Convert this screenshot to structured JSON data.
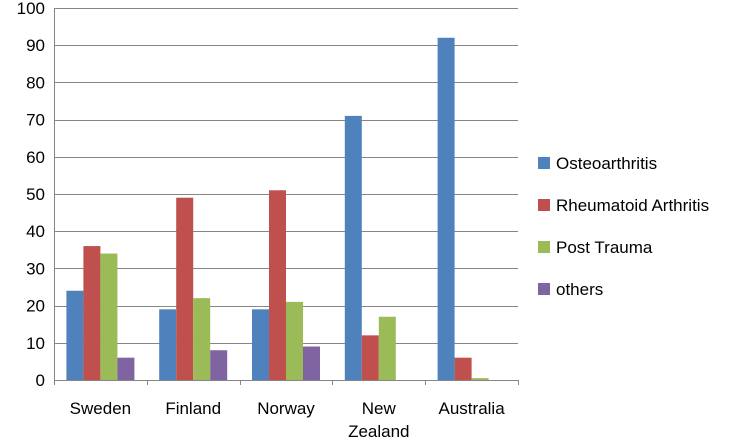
{
  "chart_data": {
    "type": "bar",
    "categories": [
      [
        "Sweden"
      ],
      [
        "Finland"
      ],
      [
        "Norway"
      ],
      [
        "New",
        "Zealand"
      ],
      [
        "Australia"
      ]
    ],
    "series": [
      {
        "name": "Osteoarthritis",
        "color": "#4F81BD",
        "values": [
          24,
          19,
          19,
          71,
          92
        ]
      },
      {
        "name": "Rheumatoid Arthritis",
        "color": "#C0504D",
        "values": [
          36,
          49,
          51,
          12,
          6
        ]
      },
      {
        "name": "Post Trauma",
        "color": "#9BBB59",
        "values": [
          34,
          22,
          21,
          17,
          0.5
        ]
      },
      {
        "name": "others",
        "color": "#8064A2",
        "values": [
          6,
          8,
          9,
          0,
          0
        ]
      }
    ],
    "ylim": [
      0,
      100
    ],
    "yticks": [
      0,
      10,
      20,
      30,
      40,
      50,
      60,
      70,
      80,
      90,
      100
    ],
    "grid": true,
    "legend_position": "right"
  }
}
